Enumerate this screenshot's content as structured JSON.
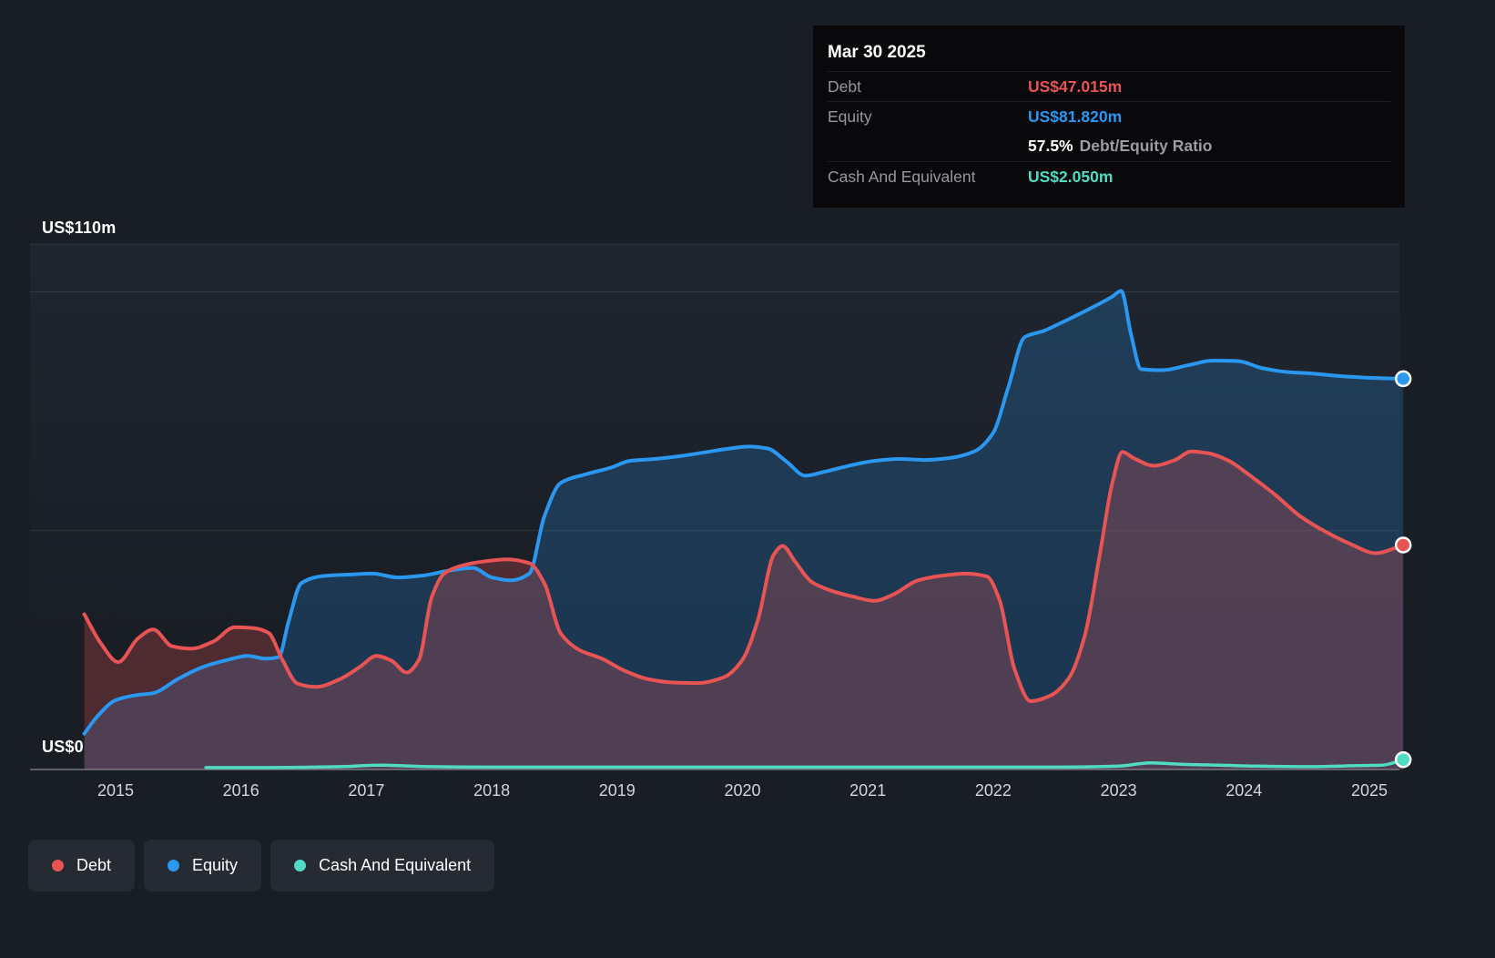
{
  "tooltip": {
    "date": "Mar 30 2025",
    "debt_label": "Debt",
    "debt_value": "US$47.015m",
    "equity_label": "Equity",
    "equity_value": "US$81.820m",
    "ratio_value": "57.5%",
    "ratio_label": "Debt/Equity Ratio",
    "cash_label": "Cash And Equivalent",
    "cash_value": "US$2.050m"
  },
  "axis": {
    "y_max_label": "US$110m",
    "y_zero_label": "US$0"
  },
  "legend": {
    "items": [
      {
        "label": "Debt"
      },
      {
        "label": "Equity"
      },
      {
        "label": "Cash And Equivalent"
      }
    ]
  },
  "colors": {
    "background": "#191d24",
    "equity": "#2a97f0",
    "debt": "#e85454",
    "cash": "#4fdcc3"
  },
  "chart_data": {
    "type": "area",
    "title": "",
    "xlabel": "",
    "ylabel": "",
    "ylim": [
      0,
      110
    ],
    "x_domain": [
      2014.75,
      2025.27
    ],
    "gridlines": [
      110,
      100,
      50,
      0
    ],
    "x_ticks": [
      2015,
      2016,
      2017,
      2018,
      2019,
      2020,
      2021,
      2022,
      2023,
      2024,
      2025
    ],
    "legend_position": "bottom-left",
    "series": [
      {
        "name": "Equity",
        "color": "#2a97f0",
        "fill": "rgba(42,151,240,0.22)",
        "width": 4,
        "points": [
          [
            2014.75,
            7.5
          ],
          [
            2014.85,
            11
          ],
          [
            2015.0,
            14.5
          ],
          [
            2015.15,
            15.5
          ],
          [
            2015.3,
            16
          ],
          [
            2015.5,
            19
          ],
          [
            2015.7,
            21.5
          ],
          [
            2015.9,
            23
          ],
          [
            2016.05,
            23.8
          ],
          [
            2016.2,
            23.2
          ],
          [
            2016.3,
            23.5
          ],
          [
            2016.38,
            31
          ],
          [
            2016.48,
            39
          ],
          [
            2016.65,
            40.5
          ],
          [
            2016.85,
            40.8
          ],
          [
            2017.05,
            41
          ],
          [
            2017.25,
            40.2
          ],
          [
            2017.45,
            40.6
          ],
          [
            2017.65,
            41.6
          ],
          [
            2017.85,
            42.2
          ],
          [
            2018.0,
            40.2
          ],
          [
            2018.15,
            39.6
          ],
          [
            2018.3,
            41
          ],
          [
            2018.42,
            53
          ],
          [
            2018.55,
            60
          ],
          [
            2018.75,
            61.8
          ],
          [
            2018.95,
            63.2
          ],
          [
            2019.1,
            64.6
          ],
          [
            2019.3,
            65
          ],
          [
            2019.5,
            65.6
          ],
          [
            2019.7,
            66.4
          ],
          [
            2019.9,
            67.2
          ],
          [
            2020.05,
            67.6
          ],
          [
            2020.2,
            67.2
          ],
          [
            2020.35,
            64.5
          ],
          [
            2020.5,
            61.5
          ],
          [
            2020.65,
            62.3
          ],
          [
            2020.85,
            63.6
          ],
          [
            2021.05,
            64.6
          ],
          [
            2021.25,
            65
          ],
          [
            2021.45,
            64.8
          ],
          [
            2021.65,
            65.2
          ],
          [
            2021.85,
            66.6
          ],
          [
            2022.0,
            70.5
          ],
          [
            2022.12,
            80
          ],
          [
            2022.25,
            90.5
          ],
          [
            2022.4,
            91.8
          ],
          [
            2022.55,
            93.6
          ],
          [
            2022.75,
            96.2
          ],
          [
            2022.95,
            99
          ],
          [
            2023.02,
            100.2
          ],
          [
            2023.1,
            91
          ],
          [
            2023.18,
            83.8
          ],
          [
            2023.35,
            83.6
          ],
          [
            2023.55,
            84.6
          ],
          [
            2023.75,
            85.6
          ],
          [
            2023.95,
            85.5
          ],
          [
            2024.15,
            84
          ],
          [
            2024.35,
            83.2
          ],
          [
            2024.55,
            82.9
          ],
          [
            2024.75,
            82.4
          ],
          [
            2025.0,
            82
          ],
          [
            2025.27,
            81.8
          ]
        ]
      },
      {
        "name": "Debt",
        "color": "#e85454",
        "fill": "rgba(232,84,84,0.26)",
        "width": 4,
        "points": [
          [
            2014.75,
            32.5
          ],
          [
            2014.88,
            26.5
          ],
          [
            2015.02,
            22.5
          ],
          [
            2015.18,
            27.5
          ],
          [
            2015.3,
            29.3
          ],
          [
            2015.45,
            25.8
          ],
          [
            2015.6,
            25.3
          ],
          [
            2015.78,
            26.8
          ],
          [
            2015.95,
            29.8
          ],
          [
            2016.1,
            29.6
          ],
          [
            2016.22,
            28.6
          ],
          [
            2016.33,
            23
          ],
          [
            2016.45,
            18
          ],
          [
            2016.6,
            17.3
          ],
          [
            2016.78,
            18.8
          ],
          [
            2016.95,
            21.5
          ],
          [
            2017.08,
            23.8
          ],
          [
            2017.2,
            22.8
          ],
          [
            2017.32,
            20.3
          ],
          [
            2017.42,
            23
          ],
          [
            2017.52,
            36
          ],
          [
            2017.62,
            41
          ],
          [
            2017.78,
            42.8
          ],
          [
            2017.95,
            43.6
          ],
          [
            2018.12,
            44
          ],
          [
            2018.3,
            43.2
          ],
          [
            2018.42,
            39
          ],
          [
            2018.55,
            28.5
          ],
          [
            2018.7,
            25
          ],
          [
            2018.88,
            23.2
          ],
          [
            2019.05,
            20.8
          ],
          [
            2019.25,
            18.9
          ],
          [
            2019.45,
            18.2
          ],
          [
            2019.65,
            18.1
          ],
          [
            2019.85,
            19.3
          ],
          [
            2020.0,
            23
          ],
          [
            2020.12,
            31
          ],
          [
            2020.25,
            45
          ],
          [
            2020.32,
            46.8
          ],
          [
            2020.42,
            43.5
          ],
          [
            2020.55,
            39.3
          ],
          [
            2020.7,
            37.5
          ],
          [
            2020.88,
            36.2
          ],
          [
            2021.05,
            35.3
          ],
          [
            2021.2,
            36.6
          ],
          [
            2021.4,
            39.6
          ],
          [
            2021.6,
            40.6
          ],
          [
            2021.78,
            41
          ],
          [
            2021.95,
            40.4
          ],
          [
            2022.05,
            35.5
          ],
          [
            2022.17,
            21
          ],
          [
            2022.3,
            14.3
          ],
          [
            2022.45,
            15.4
          ],
          [
            2022.6,
            19
          ],
          [
            2022.73,
            28
          ],
          [
            2022.85,
            45
          ],
          [
            2022.95,
            60
          ],
          [
            2023.03,
            66.5
          ],
          [
            2023.12,
            65.2
          ],
          [
            2023.28,
            63.6
          ],
          [
            2023.45,
            64.8
          ],
          [
            2023.58,
            66.6
          ],
          [
            2023.72,
            66.2
          ],
          [
            2023.88,
            64.6
          ],
          [
            2024.05,
            61.5
          ],
          [
            2024.25,
            57.5
          ],
          [
            2024.45,
            53
          ],
          [
            2024.65,
            49.8
          ],
          [
            2024.85,
            47.2
          ],
          [
            2025.05,
            45.3
          ],
          [
            2025.27,
            47.0
          ]
        ]
      },
      {
        "name": "Cash And Equivalent",
        "color": "#4fdcc3",
        "fill": "none",
        "width": 3.5,
        "points": [
          [
            2015.72,
            0.4
          ],
          [
            2016.2,
            0.4
          ],
          [
            2016.8,
            0.6
          ],
          [
            2017.1,
            0.9
          ],
          [
            2017.5,
            0.6
          ],
          [
            2018.0,
            0.5
          ],
          [
            2018.5,
            0.5
          ],
          [
            2019.0,
            0.5
          ],
          [
            2019.5,
            0.5
          ],
          [
            2020.0,
            0.5
          ],
          [
            2020.5,
            0.5
          ],
          [
            2021.0,
            0.5
          ],
          [
            2021.5,
            0.5
          ],
          [
            2022.0,
            0.5
          ],
          [
            2022.5,
            0.5
          ],
          [
            2023.0,
            0.7
          ],
          [
            2023.25,
            1.4
          ],
          [
            2023.5,
            1.1
          ],
          [
            2023.8,
            0.9
          ],
          [
            2024.1,
            0.7
          ],
          [
            2024.5,
            0.6
          ],
          [
            2024.9,
            0.8
          ],
          [
            2025.1,
            0.9
          ],
          [
            2025.27,
            2.05
          ]
        ]
      }
    ]
  }
}
